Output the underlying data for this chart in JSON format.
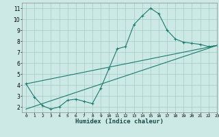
{
  "xlabel": "Humidex (Indice chaleur)",
  "ylabel": "",
  "bg_color": "#cce9e5",
  "grid_color": "#aacfcb",
  "line_color": "#1a7a6e",
  "xlim": [
    -0.5,
    23
  ],
  "ylim": [
    1.5,
    11.5
  ],
  "xticks": [
    0,
    1,
    2,
    3,
    4,
    5,
    6,
    7,
    8,
    9,
    10,
    11,
    12,
    13,
    14,
    15,
    16,
    17,
    18,
    19,
    20,
    21,
    22,
    23
  ],
  "yticks": [
    2,
    3,
    4,
    5,
    6,
    7,
    8,
    9,
    10,
    11
  ],
  "line1_x": [
    0,
    1,
    2,
    3,
    4,
    5,
    6,
    7,
    8,
    9,
    10,
    11,
    12,
    13,
    14,
    15,
    16,
    17,
    18,
    19,
    20,
    21,
    22,
    23
  ],
  "line1_y": [
    4.1,
    2.9,
    2.1,
    1.8,
    2.0,
    2.6,
    2.7,
    2.5,
    2.3,
    3.7,
    5.5,
    7.3,
    7.5,
    9.5,
    10.3,
    11.0,
    10.5,
    9.0,
    8.2,
    7.9,
    7.8,
    7.7,
    7.5,
    7.6
  ],
  "line2_x": [
    0,
    23
  ],
  "line2_y": [
    4.1,
    7.6
  ],
  "line3_x": [
    0,
    23
  ],
  "line3_y": [
    1.8,
    7.6
  ]
}
